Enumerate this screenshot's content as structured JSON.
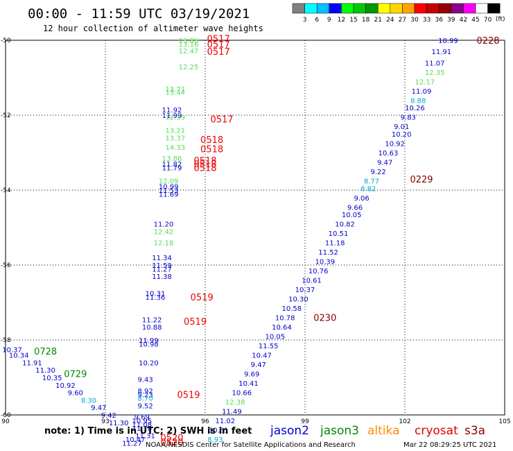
{
  "header": {
    "title": "00:00 - 11:59 UTC 03/19/2021",
    "subtitle": "12 hour collection of altimeter wave heights"
  },
  "colorbar": {
    "unit": "(ft)",
    "colors": [
      "#808080",
      "#00ffff",
      "#00bfff",
      "#0000ff",
      "#00ff00",
      "#00c800",
      "#009600",
      "#ffff00",
      "#ffd700",
      "#ffa500",
      "#ff0000",
      "#c80000",
      "#960000",
      "#8b008b",
      "#ff00ff",
      "#ffffff",
      "#000000"
    ],
    "labels": [
      "3",
      "6",
      "9",
      "12",
      "15",
      "18",
      "21",
      "24",
      "27",
      "30",
      "33",
      "36",
      "39",
      "42",
      "45",
      "70"
    ]
  },
  "footer": {
    "note": "note: 1) Time is in UTC; 2) SWH is in feet",
    "credit": "NOAA/NESDIS Center for Satellite Applications and Research",
    "timestamp": "Mar 22 08:29:25 UTC 2021"
  },
  "legend": [
    {
      "name": "jason2",
      "color": "#0000cc"
    },
    {
      "name": "jason3",
      "color": "#008800"
    },
    {
      "name": "altika",
      "color": "#ff8c00"
    },
    {
      "name": "cryosat",
      "color": "#dd0000"
    },
    {
      "name": "s3a",
      "color": "#8b0000"
    }
  ],
  "chart_data": {
    "type": "scatter",
    "xlim": [
      90,
      105
    ],
    "ylim": [
      -60,
      -50
    ],
    "xticks": [
      "90",
      "93",
      "96",
      "99",
      "102",
      "105"
    ],
    "yticks": [
      "-50",
      "-52",
      "-54",
      "-56",
      "-58",
      "-60"
    ],
    "grid": true,
    "point_colors": {
      "teal": "#00aacc",
      "blue": "#0000cc",
      "green": "#55dd55",
      "red": "#ee0000",
      "darkred": "#880000",
      "dkgreen": "#008800"
    },
    "points": [
      {
        "x": 95.5,
        "y": -50.0,
        "t": "13.86",
        "c": "green"
      },
      {
        "x": 95.5,
        "y": -50.1,
        "t": "13.16",
        "c": "green"
      },
      {
        "x": 95.5,
        "y": -50.28,
        "t": "12.47",
        "c": "green"
      },
      {
        "x": 95.5,
        "y": -50.7,
        "t": "12.25",
        "c": "green"
      },
      {
        "x": 95.1,
        "y": -51.3,
        "t": "13.71",
        "c": "green"
      },
      {
        "x": 95.1,
        "y": -51.38,
        "t": "13.44",
        "c": "green"
      },
      {
        "x": 95.0,
        "y": -51.85,
        "t": "11.92",
        "c": "blue"
      },
      {
        "x": 95.0,
        "y": -52.0,
        "t": "11.99",
        "c": "blue"
      },
      {
        "x": 95.1,
        "y": -52.05,
        "t": "12.39",
        "c": "green"
      },
      {
        "x": 95.1,
        "y": -52.4,
        "t": "13.21",
        "c": "green"
      },
      {
        "x": 95.1,
        "y": -52.6,
        "t": "13.37",
        "c": "green"
      },
      {
        "x": 95.1,
        "y": -52.85,
        "t": "14.33",
        "c": "green"
      },
      {
        "x": 95.0,
        "y": -53.15,
        "t": "13.86",
        "c": "green"
      },
      {
        "x": 95.0,
        "y": -53.3,
        "t": "11.82",
        "c": "blue"
      },
      {
        "x": 95.0,
        "y": -53.4,
        "t": "11.79",
        "c": "blue"
      },
      {
        "x": 94.9,
        "y": -53.75,
        "t": "12.09",
        "c": "green"
      },
      {
        "x": 94.9,
        "y": -53.9,
        "t": "10.99",
        "c": "blue"
      },
      {
        "x": 94.9,
        "y": -54.0,
        "t": "11.53",
        "c": "blue"
      },
      {
        "x": 94.9,
        "y": -54.1,
        "t": "11.69",
        "c": "blue"
      },
      {
        "x": 94.75,
        "y": -54.9,
        "t": "11.20",
        "c": "blue"
      },
      {
        "x": 94.75,
        "y": -55.1,
        "t": "12.42",
        "c": "green"
      },
      {
        "x": 94.75,
        "y": -55.4,
        "t": "12.18",
        "c": "green"
      },
      {
        "x": 94.7,
        "y": -55.8,
        "t": "11.34",
        "c": "blue"
      },
      {
        "x": 94.7,
        "y": -56.0,
        "t": "11.59",
        "c": "blue"
      },
      {
        "x": 94.7,
        "y": -56.1,
        "t": "11.27",
        "c": "blue"
      },
      {
        "x": 94.7,
        "y": -56.3,
        "t": "11.38",
        "c": "blue"
      },
      {
        "x": 94.5,
        "y": -56.75,
        "t": "10.31",
        "c": "blue"
      },
      {
        "x": 94.5,
        "y": -56.85,
        "t": "11.36",
        "c": "blue"
      },
      {
        "x": 94.4,
        "y": -57.45,
        "t": "11.22",
        "c": "blue"
      },
      {
        "x": 94.4,
        "y": -57.65,
        "t": "10.88",
        "c": "blue"
      },
      {
        "x": 94.3,
        "y": -58.0,
        "t": "11.99",
        "c": "blue"
      },
      {
        "x": 94.3,
        "y": -58.1,
        "t": "10.98",
        "c": "blue"
      },
      {
        "x": 94.3,
        "y": -58.6,
        "t": "10.20",
        "c": "blue"
      },
      {
        "x": 94.2,
        "y": -59.05,
        "t": "9.43",
        "c": "blue"
      },
      {
        "x": 94.2,
        "y": -59.35,
        "t": "8.92",
        "c": "blue"
      },
      {
        "x": 94.2,
        "y": -59.45,
        "t": "9.23",
        "c": "blue"
      },
      {
        "x": 94.2,
        "y": -59.55,
        "t": "8.70",
        "c": "teal"
      },
      {
        "x": 94.2,
        "y": -59.75,
        "t": "9.52",
        "c": "blue"
      },
      {
        "x": 94.1,
        "y": -60.05,
        "t": "9.69",
        "c": "blue"
      },
      {
        "x": 94.1,
        "y": -60.15,
        "t": "10.95",
        "c": "blue"
      },
      {
        "x": 94.1,
        "y": -60.25,
        "t": "11.08",
        "c": "blue"
      },
      {
        "x": 94.1,
        "y": -60.35,
        "t": "11.70",
        "c": "blue"
      },
      {
        "x": 94.2,
        "y": -60.55,
        "t": "11.31",
        "c": "blue"
      },
      {
        "x": 93.9,
        "y": -60.65,
        "t": "10.47",
        "c": "blue"
      },
      {
        "x": 93.8,
        "y": -60.75,
        "t": "11.27",
        "c": "blue"
      },
      {
        "x": 90.2,
        "y": -58.25,
        "t": "10.37",
        "c": "blue"
      },
      {
        "x": 90.4,
        "y": -58.4,
        "t": "10.34",
        "c": "blue"
      },
      {
        "x": 90.8,
        "y": -58.6,
        "t": "11.91",
        "c": "blue"
      },
      {
        "x": 91.2,
        "y": -58.8,
        "t": "11.30",
        "c": "blue"
      },
      {
        "x": 91.4,
        "y": -59.0,
        "t": "10.35",
        "c": "blue"
      },
      {
        "x": 91.8,
        "y": -59.2,
        "t": "10.92",
        "c": "blue"
      },
      {
        "x": 92.1,
        "y": -59.4,
        "t": "9.60",
        "c": "blue"
      },
      {
        "x": 92.5,
        "y": -59.6,
        "t": "8.30",
        "c": "teal"
      },
      {
        "x": 92.8,
        "y": -59.8,
        "t": "9.47",
        "c": "blue"
      },
      {
        "x": 93.1,
        "y": -60.0,
        "t": "9.42",
        "c": "blue"
      },
      {
        "x": 93.4,
        "y": -60.2,
        "t": "11.30",
        "c": "blue"
      },
      {
        "x": 103.3,
        "y": -50.0,
        "t": "10.99",
        "c": "blue"
      },
      {
        "x": 103.1,
        "y": -50.3,
        "t": "11.91",
        "c": "blue"
      },
      {
        "x": 102.9,
        "y": -50.6,
        "t": "11.07",
        "c": "blue"
      },
      {
        "x": 102.9,
        "y": -50.85,
        "t": "12.35",
        "c": "green"
      },
      {
        "x": 102.6,
        "y": -51.1,
        "t": "12.17",
        "c": "green"
      },
      {
        "x": 102.5,
        "y": -51.35,
        "t": "11.09",
        "c": "blue"
      },
      {
        "x": 102.4,
        "y": -51.6,
        "t": "8.88",
        "c": "teal"
      },
      {
        "x": 102.3,
        "y": -51.8,
        "t": "10.26",
        "c": "blue"
      },
      {
        "x": 102.1,
        "y": -52.05,
        "t": "9.83",
        "c": "blue"
      },
      {
        "x": 101.9,
        "y": -52.3,
        "t": "9.01",
        "c": "blue"
      },
      {
        "x": 101.9,
        "y": -52.5,
        "t": "10.20",
        "c": "blue"
      },
      {
        "x": 101.7,
        "y": -52.75,
        "t": "10.92",
        "c": "blue"
      },
      {
        "x": 101.5,
        "y": -53.0,
        "t": "10.63",
        "c": "blue"
      },
      {
        "x": 101.4,
        "y": -53.25,
        "t": "9.47",
        "c": "blue"
      },
      {
        "x": 101.2,
        "y": -53.5,
        "t": "9.22",
        "c": "blue"
      },
      {
        "x": 101.0,
        "y": -53.75,
        "t": "8.77",
        "c": "teal"
      },
      {
        "x": 100.9,
        "y": -53.95,
        "t": "8.82",
        "c": "teal"
      },
      {
        "x": 100.7,
        "y": -54.2,
        "t": "9.06",
        "c": "blue"
      },
      {
        "x": 100.5,
        "y": -54.45,
        "t": "9.66",
        "c": "blue"
      },
      {
        "x": 100.4,
        "y": -54.65,
        "t": "10.05",
        "c": "blue"
      },
      {
        "x": 100.2,
        "y": -54.9,
        "t": "10.82",
        "c": "blue"
      },
      {
        "x": 100.0,
        "y": -55.15,
        "t": "10.51",
        "c": "blue"
      },
      {
        "x": 99.9,
        "y": -55.4,
        "t": "11.18",
        "c": "blue"
      },
      {
        "x": 99.7,
        "y": -55.65,
        "t": "11.52",
        "c": "blue"
      },
      {
        "x": 99.6,
        "y": -55.9,
        "t": "10.39",
        "c": "blue"
      },
      {
        "x": 99.4,
        "y": -56.15,
        "t": "10.76",
        "c": "blue"
      },
      {
        "x": 99.2,
        "y": -56.4,
        "t": "10.61",
        "c": "blue"
      },
      {
        "x": 99.0,
        "y": -56.65,
        "t": "10.37",
        "c": "blue"
      },
      {
        "x": 98.8,
        "y": -56.9,
        "t": "10.30",
        "c": "blue"
      },
      {
        "x": 98.6,
        "y": -57.15,
        "t": "10.58",
        "c": "blue"
      },
      {
        "x": 98.4,
        "y": -57.4,
        "t": "10.78",
        "c": "blue"
      },
      {
        "x": 98.3,
        "y": -57.65,
        "t": "10.64",
        "c": "blue"
      },
      {
        "x": 98.1,
        "y": -57.9,
        "t": "10.05",
        "c": "blue"
      },
      {
        "x": 97.9,
        "y": -58.15,
        "t": "11.55",
        "c": "blue"
      },
      {
        "x": 97.7,
        "y": -58.4,
        "t": "10.47",
        "c": "blue"
      },
      {
        "x": 97.6,
        "y": -58.65,
        "t": "9.47",
        "c": "blue"
      },
      {
        "x": 97.4,
        "y": -58.9,
        "t": "9.69",
        "c": "blue"
      },
      {
        "x": 97.3,
        "y": -59.15,
        "t": "10.41",
        "c": "blue"
      },
      {
        "x": 97.1,
        "y": -59.4,
        "t": "10.66",
        "c": "blue"
      },
      {
        "x": 96.9,
        "y": -59.65,
        "t": "12.38",
        "c": "green"
      },
      {
        "x": 96.8,
        "y": -59.9,
        "t": "11.49",
        "c": "blue"
      },
      {
        "x": 96.6,
        "y": -60.15,
        "t": "11.02",
        "c": "blue"
      },
      {
        "x": 96.4,
        "y": -60.4,
        "t": "10.61",
        "c": "blue"
      },
      {
        "x": 96.3,
        "y": -60.65,
        "t": "8.93",
        "c": "teal"
      }
    ],
    "time_labels": [
      {
        "x": 96.4,
        "y": -49.95,
        "t": "0517",
        "c": "red"
      },
      {
        "x": 96.4,
        "y": -50.1,
        "t": "0517",
        "c": "red"
      },
      {
        "x": 96.4,
        "y": -50.3,
        "t": "0517",
        "c": "red"
      },
      {
        "x": 96.5,
        "y": -52.1,
        "t": "0517",
        "c": "red"
      },
      {
        "x": 96.2,
        "y": -52.65,
        "t": "0518",
        "c": "red"
      },
      {
        "x": 96.2,
        "y": -52.9,
        "t": "0518",
        "c": "red"
      },
      {
        "x": 96.0,
        "y": -53.2,
        "t": "0518",
        "c": "red"
      },
      {
        "x": 96.0,
        "y": -53.3,
        "t": "0518",
        "c": "red"
      },
      {
        "x": 96.0,
        "y": -53.4,
        "t": "0518",
        "c": "red"
      },
      {
        "x": 95.9,
        "y": -56.85,
        "t": "0519",
        "c": "red"
      },
      {
        "x": 95.7,
        "y": -57.5,
        "t": "0519",
        "c": "red"
      },
      {
        "x": 95.5,
        "y": -59.45,
        "t": "0519",
        "c": "red"
      },
      {
        "x": 95.0,
        "y": -60.6,
        "t": "0520",
        "c": "red"
      },
      {
        "x": 95.0,
        "y": -60.72,
        "t": "0520",
        "c": "red"
      },
      {
        "x": 104.5,
        "y": -50.0,
        "t": "0228",
        "c": "darkred"
      },
      {
        "x": 102.5,
        "y": -53.7,
        "t": "0229",
        "c": "darkred"
      },
      {
        "x": 99.6,
        "y": -57.4,
        "t": "0230",
        "c": "darkred"
      },
      {
        "x": 91.2,
        "y": -58.3,
        "t": "0728",
        "c": "dkgreen"
      },
      {
        "x": 92.1,
        "y": -58.9,
        "t": "0729",
        "c": "dkgreen"
      }
    ]
  }
}
